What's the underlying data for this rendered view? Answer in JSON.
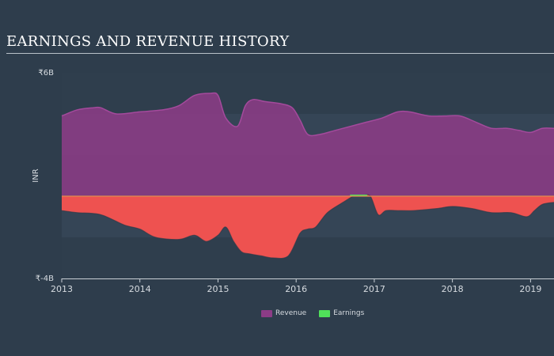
{
  "page": {
    "title": "EARNINGS AND REVENUE HISTORY"
  },
  "chart_data": {
    "type": "area",
    "currency_symbol": "₹",
    "ylabel": "INR",
    "ylim": [
      -4,
      6
    ],
    "y_unit": "billions INR",
    "y_tick_labels": [
      "₹6B",
      "₹-4B"
    ],
    "xlim": [
      2013.0,
      2019.3
    ],
    "x_tick_labels": [
      "2013",
      "2014",
      "2015",
      "2016",
      "2017",
      "2018",
      "2019"
    ],
    "grid": "horizontal bands",
    "legend_position": "bottom",
    "series": [
      {
        "name": "Revenue",
        "color": "#8c3c86",
        "line_color": "#a44a9c",
        "x": [
          2013.0,
          2013.2,
          2013.4,
          2013.5,
          2013.7,
          2014.0,
          2014.3,
          2014.5,
          2014.7,
          2014.9,
          2015.0,
          2015.1,
          2015.25,
          2015.35,
          2015.45,
          2015.6,
          2015.8,
          2015.95,
          2016.05,
          2016.15,
          2016.3,
          2016.5,
          2016.7,
          2016.9,
          2017.1,
          2017.3,
          2017.45,
          2017.7,
          2017.9,
          2018.1,
          2018.3,
          2018.5,
          2018.7,
          2018.85,
          2019.0,
          2019.15,
          2019.3
        ],
        "values": [
          3.9,
          4.2,
          4.3,
          4.3,
          4.0,
          4.1,
          4.2,
          4.4,
          4.9,
          5.0,
          4.9,
          3.8,
          3.4,
          4.4,
          4.7,
          4.6,
          4.5,
          4.3,
          3.7,
          3.0,
          3.0,
          3.2,
          3.4,
          3.6,
          3.8,
          4.1,
          4.1,
          3.9,
          3.9,
          3.9,
          3.6,
          3.3,
          3.3,
          3.2,
          3.1,
          3.3,
          3.3
        ]
      },
      {
        "name": "Earnings",
        "color": "#ee5250",
        "positive_color": "#50e15a",
        "x": [
          2013.0,
          2013.2,
          2013.5,
          2013.8,
          2014.0,
          2014.2,
          2014.5,
          2014.7,
          2014.85,
          2015.0,
          2015.1,
          2015.2,
          2015.3,
          2015.4,
          2015.55,
          2015.7,
          2015.9,
          2016.05,
          2016.15,
          2016.25,
          2016.4,
          2016.6,
          2016.75,
          2016.85,
          2016.95,
          2017.05,
          2017.15,
          2017.3,
          2017.5,
          2017.8,
          2018.0,
          2018.25,
          2018.5,
          2018.75,
          2018.95,
          2019.05,
          2019.15,
          2019.3
        ],
        "values": [
          -0.7,
          -0.8,
          -0.9,
          -1.4,
          -1.6,
          -2.0,
          -2.1,
          -1.9,
          -2.2,
          -1.9,
          -1.5,
          -2.2,
          -2.7,
          -2.8,
          -2.9,
          -3.0,
          -2.9,
          -1.8,
          -1.6,
          -1.5,
          -0.8,
          -0.3,
          0.03,
          0.03,
          0.0,
          -0.9,
          -0.7,
          -0.7,
          -0.7,
          -0.6,
          -0.5,
          -0.6,
          -0.8,
          -0.8,
          -1.0,
          -0.7,
          -0.4,
          -0.3
        ]
      }
    ]
  }
}
